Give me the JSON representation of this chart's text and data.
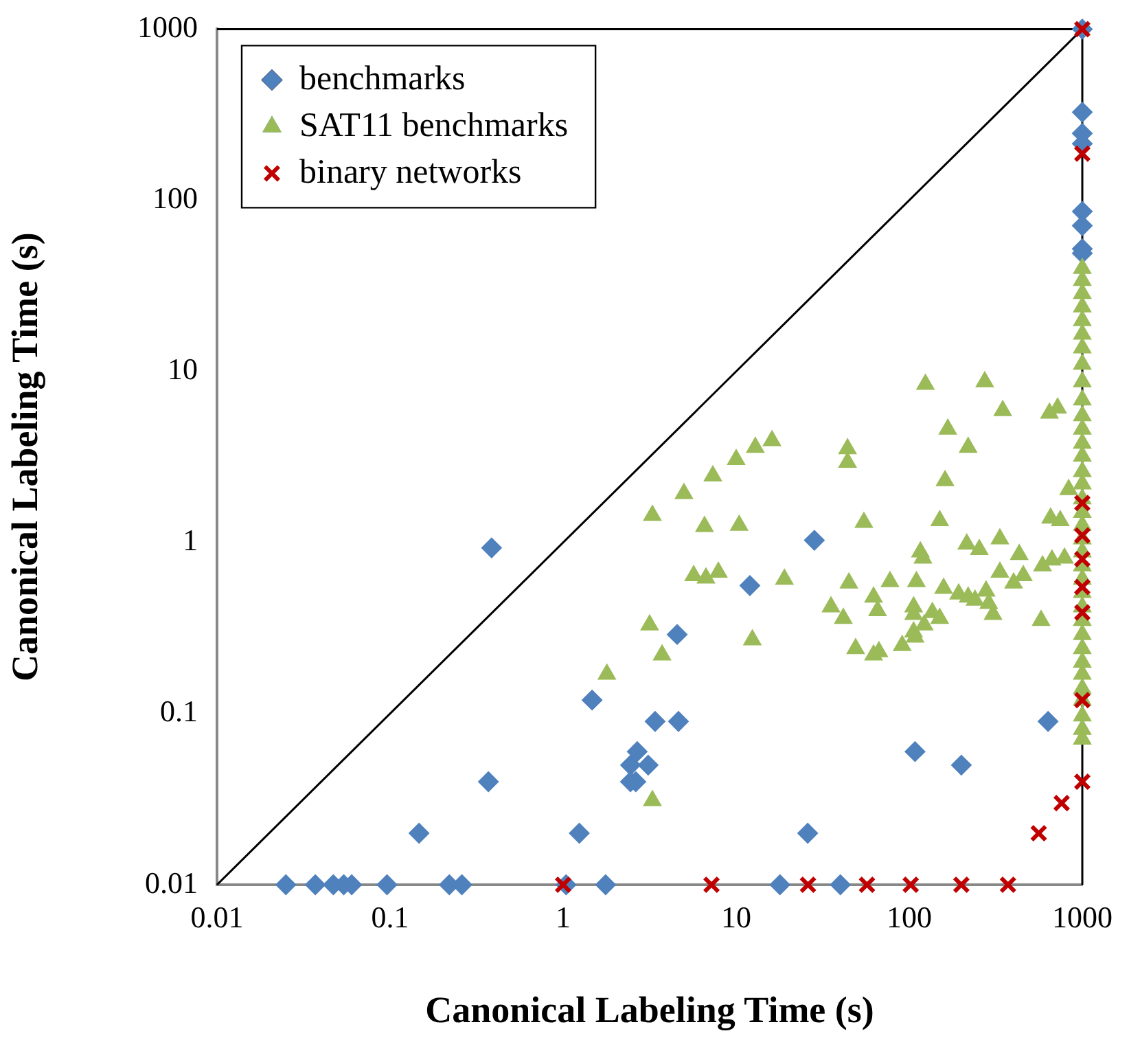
{
  "chart_data": {
    "type": "scatter",
    "xlabel": "Canonical Labeling Time (s)",
    "ylabel": "Canonical Labeling Time (s)",
    "log": "xy",
    "xlim": [
      0.01,
      1000
    ],
    "ylim": [
      0.01,
      1000
    ],
    "xticks": [
      0.01,
      0.1,
      1,
      10,
      100,
      1000
    ],
    "yticks": [
      0.01,
      0.1,
      1,
      10,
      100,
      1000
    ],
    "grid": false,
    "legend": "top left",
    "series": [
      {
        "name": "benchmarks",
        "color": "#4f81bd",
        "marker": "diamond",
        "x": [
          0.025,
          0.037,
          0.047,
          0.054,
          0.06,
          0.096,
          0.22,
          0.26,
          1.04,
          1.76,
          17.9,
          40,
          0.386,
          0.37,
          0.147,
          1.24,
          1.47,
          3.4,
          4.64,
          2.68,
          2.45,
          3.1,
          2.45,
          2.63,
          25.9,
          108,
          200,
          634,
          4.56,
          12,
          28.3,
          1000,
          1000,
          1000,
          1000,
          1000,
          1000,
          1000,
          1000
        ],
        "values": [
          0.01,
          0.01,
          0.01,
          0.01,
          0.01,
          0.01,
          0.01,
          0.01,
          0.01,
          0.01,
          0.01,
          0.01,
          0.93,
          0.04,
          0.02,
          0.02,
          0.12,
          0.09,
          0.09,
          0.06,
          0.05,
          0.05,
          0.04,
          0.04,
          0.02,
          0.06,
          0.05,
          0.09,
          0.29,
          0.56,
          1.03,
          1000,
          327,
          246,
          214,
          86,
          71,
          52,
          49
        ]
      },
      {
        "name": "SAT11 benchmarks",
        "color": "#9bbb59",
        "marker": "triangle",
        "x": [
          1.79,
          3.16,
          3.28,
          3.28,
          3.73,
          12.4,
          4.99,
          7.33,
          10,
          12.9,
          16.1,
          6.56,
          10.4,
          5.68,
          6.69,
          7.89,
          19,
          44,
          44,
          54.7,
          44.8,
          35.3,
          41.6,
          77.4,
          62.2,
          65.6,
          49,
          62.2,
          66.8,
          91,
          106,
          110,
          120,
          108,
          124,
          273,
          347,
          167,
          219,
          646,
          720,
          161,
          150,
          834,
          116,
          215,
          254,
          334,
          432,
          334,
          456,
          401,
          589,
          668,
          789,
          656,
          746,
          158,
          193,
          219,
          240,
          278,
          288,
          305,
          578,
          106,
          136,
          150,
          122,
          106,
          1000,
          1000,
          1000,
          1000,
          1000,
          1000,
          1000,
          1000,
          1000,
          1000,
          1000,
          1000,
          1000,
          1000,
          1000,
          1000,
          1000,
          1000,
          1000,
          1000,
          1000,
          1000,
          1000,
          1000,
          1000,
          1000,
          1000,
          1000,
          1000,
          1000,
          1000,
          1000,
          1000,
          1000,
          1000
        ],
        "values": [
          0.17,
          0.33,
          1.44,
          0.031,
          0.22,
          0.27,
          1.93,
          2.45,
          3.05,
          3.6,
          3.94,
          1.24,
          1.26,
          0.64,
          0.62,
          0.67,
          0.61,
          3.53,
          2.94,
          1.31,
          0.58,
          0.42,
          0.36,
          0.59,
          0.48,
          0.4,
          0.24,
          0.22,
          0.23,
          0.25,
          0.38,
          0.59,
          0.81,
          0.28,
          8.4,
          8.7,
          5.9,
          4.6,
          3.6,
          5.7,
          6.1,
          2.3,
          1.34,
          2.04,
          0.88,
          0.98,
          0.91,
          1.05,
          0.85,
          0.67,
          0.64,
          0.58,
          0.73,
          0.79,
          0.81,
          1.39,
          1.34,
          0.54,
          0.5,
          0.48,
          0.46,
          0.52,
          0.44,
          0.38,
          0.35,
          0.42,
          0.39,
          0.36,
          0.33,
          0.3,
          40,
          34,
          28.5,
          23.8,
          19.8,
          16.5,
          13.7,
          11,
          8.7,
          6.8,
          5.5,
          4.6,
          3.8,
          3.2,
          2.6,
          2.2,
          1.8,
          1.5,
          1.26,
          1.05,
          0.88,
          0.73,
          0.61,
          0.51,
          0.42,
          0.35,
          0.29,
          0.24,
          0.2,
          0.17,
          0.14,
          0.12,
          0.097,
          0.081,
          0.071
        ]
      },
      {
        "name": "binary networks",
        "color": "#c00000",
        "marker": "cross",
        "x": [
          1,
          7.2,
          26,
          57,
          102,
          200,
          372,
          560,
          760,
          1000,
          1000,
          1000,
          1000,
          1000,
          1000,
          1000,
          1000,
          1000
        ],
        "values": [
          0.01,
          0.01,
          0.01,
          0.01,
          0.01,
          0.01,
          0.01,
          0.02,
          0.03,
          1000,
          187,
          1.7,
          1.1,
          0.8,
          0.55,
          0.39,
          0.12,
          0.04
        ]
      },
      {
        "type": "line",
        "color": "#000000",
        "marker": "none",
        "x": [
          0.01,
          1000
        ],
        "values": [
          0.01,
          1000
        ]
      }
    ]
  }
}
